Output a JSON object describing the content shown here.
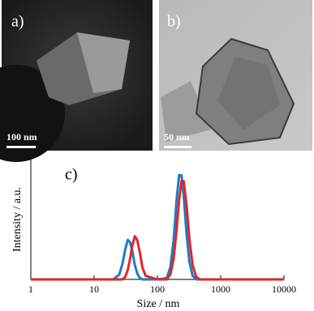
{
  "panels": [
    {
      "label": "a)",
      "scale_bar": "100 nm"
    },
    {
      "label": "b)",
      "scale_bar": "50 nm"
    }
  ],
  "chart_data": {
    "type": "line",
    "label": "c)",
    "x_label": "Size / nm",
    "y_label": "Intensity / a.u.",
    "log_x": true,
    "xlim": [
      1,
      10000
    ],
    "xticks": [
      1,
      10,
      100,
      1000,
      10000
    ],
    "ylim": [
      0,
      1
    ],
    "x": [
      1,
      20,
      25,
      28,
      31,
      34,
      37,
      40,
      44,
      48,
      53,
      58,
      65,
      100,
      140,
      160,
      180,
      200,
      220,
      240,
      260,
      290,
      320,
      360,
      410,
      470,
      10000
    ],
    "series": [
      {
        "color": "#1f7bc4",
        "values": [
          0,
          0,
          0.04,
          0.13,
          0.25,
          0.33,
          0.31,
          0.24,
          0.12,
          0.05,
          0.01,
          0,
          0,
          0,
          0.01,
          0.1,
          0.32,
          0.65,
          0.87,
          0.87,
          0.7,
          0.37,
          0.15,
          0.03,
          0,
          0,
          0
        ]
      },
      {
        "color": "#e0262c",
        "values": [
          0,
          0,
          0,
          0,
          0.02,
          0.08,
          0.17,
          0.28,
          0.36,
          0.33,
          0.22,
          0.1,
          0.03,
          0,
          0,
          0.04,
          0.17,
          0.4,
          0.66,
          0.82,
          0.82,
          0.61,
          0.34,
          0.12,
          0.02,
          0,
          0
        ]
      }
    ]
  }
}
